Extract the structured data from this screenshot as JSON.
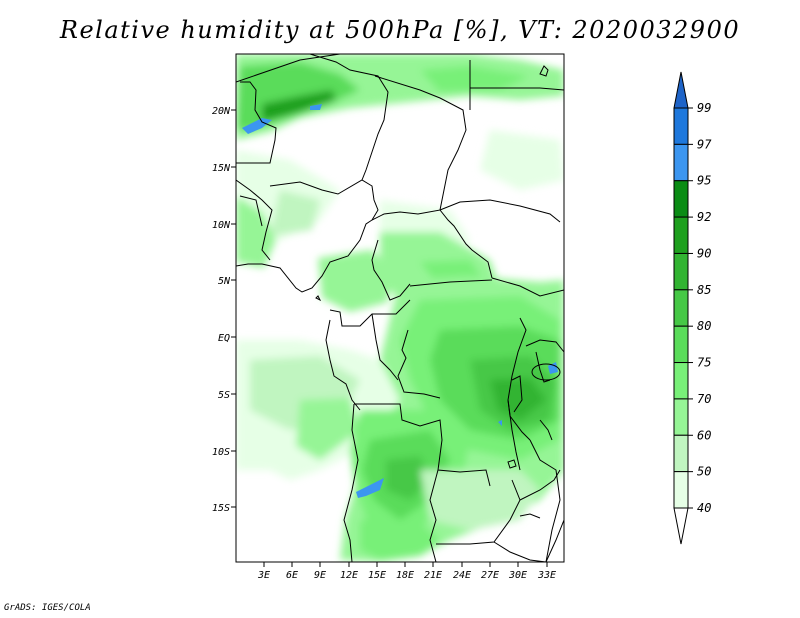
{
  "title": "Relative humidity at 500hPa [%], VT: 2020032900",
  "footer": "GrADS: IGES/COLA",
  "map": {
    "lat_labels": [
      "20N",
      "15N",
      "10N",
      "5N",
      "EQ",
      "5S",
      "10S",
      "15S"
    ],
    "lon_labels": [
      "3E",
      "6E",
      "9E",
      "12E",
      "15E",
      "18E",
      "21E",
      "24E",
      "27E",
      "30E",
      "33E"
    ]
  },
  "colorbar": {
    "labels": [
      "99",
      "97",
      "95",
      "92",
      "90",
      "85",
      "80",
      "75",
      "70",
      "60",
      "50",
      "40"
    ],
    "colors": [
      "#1e64c8",
      "#1e78dc",
      "#3c96f0",
      "#0a8c14",
      "#1ea01e",
      "#32b432",
      "#46c846",
      "#5adc5a",
      "#78f078",
      "#96f596",
      "#c0f5c0",
      "#e6ffe6",
      "#ffffff"
    ]
  }
}
